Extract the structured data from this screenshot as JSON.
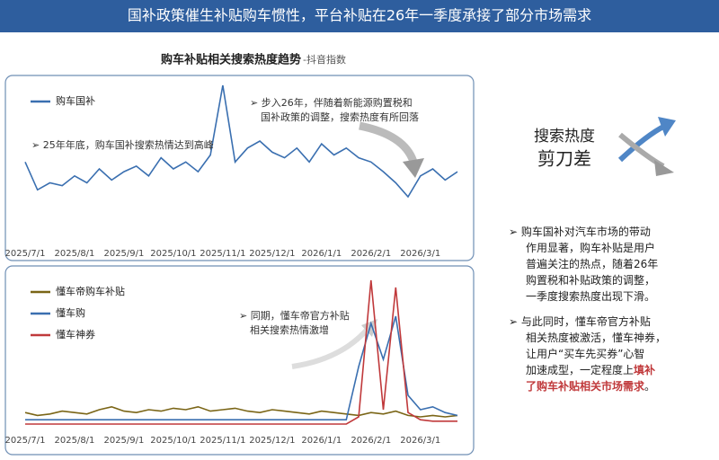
{
  "header": {
    "title": "国补政策催生补贴购车惯性，平台补贴在26年一季度承接了部分市场需求"
  },
  "chart_heading": {
    "title": "购车补贴相关搜索热度趋势",
    "source": "-抖音指数"
  },
  "chart_data": [
    {
      "type": "line",
      "categories": [
        "2025/7/1",
        null,
        null,
        null,
        "2025/8/1",
        null,
        null,
        null,
        "2025/9/1",
        null,
        null,
        null,
        "2025/10/1",
        null,
        null,
        null,
        "2025/11/1",
        null,
        null,
        null,
        "2025/12/1",
        null,
        null,
        null,
        "2026/1/1",
        null,
        null,
        null,
        "2026/2/1",
        null,
        null,
        null,
        "2026/3/1",
        null,
        null,
        null
      ],
      "series": [
        {
          "name": "购车国补",
          "color": "#3a6fb0",
          "values": [
            45,
            25,
            30,
            28,
            35,
            30,
            40,
            32,
            38,
            42,
            35,
            48,
            40,
            45,
            38,
            50,
            100,
            45,
            55,
            60,
            52,
            48,
            55,
            45,
            58,
            50,
            55,
            48,
            45,
            38,
            30,
            20,
            35,
            40,
            32,
            38
          ]
        }
      ],
      "annotations": [
        [
          "➢ 25年年底，购车国补搜索热情达到高峰"
        ],
        [
          "➢ 步入26年，伴随着新能源购置税和",
          "国补政策的调整，搜索热度有所回落"
        ]
      ]
    },
    {
      "type": "line",
      "categories": [
        "2025/7/1",
        null,
        null,
        null,
        "2025/8/1",
        null,
        null,
        null,
        "2025/9/1",
        null,
        null,
        null,
        "2025/10/1",
        null,
        null,
        null,
        "2025/11/1",
        null,
        null,
        null,
        "2025/12/1",
        null,
        null,
        null,
        "2026/1/1",
        null,
        null,
        null,
        "2026/2/1",
        null,
        null,
        null,
        "2026/3/1",
        null,
        null,
        null
      ],
      "series": [
        {
          "name": "懂车帝购车补贴",
          "color": "#7a6516",
          "values": [
            8,
            6,
            7,
            9,
            8,
            7,
            10,
            12,
            9,
            8,
            10,
            9,
            11,
            10,
            12,
            9,
            10,
            11,
            9,
            8,
            10,
            9,
            8,
            7,
            9,
            8,
            7,
            6,
            8,
            7,
            9,
            6,
            5,
            6,
            5,
            6
          ]
        },
        {
          "name": "懂车购",
          "color": "#3a6fb0",
          "values": [
            3,
            3,
            3,
            3,
            3,
            3,
            3,
            3,
            3,
            3,
            3,
            3,
            3,
            3,
            3,
            3,
            3,
            3,
            3,
            3,
            3,
            3,
            3,
            3,
            3,
            3,
            3,
            40,
            70,
            45,
            75,
            20,
            10,
            12,
            8,
            6
          ]
        },
        {
          "name": "懂车神券",
          "color": "#c0393b",
          "values": [
            0,
            0,
            0,
            0,
            0,
            0,
            0,
            0,
            0,
            0,
            0,
            0,
            0,
            0,
            0,
            0,
            0,
            0,
            0,
            0,
            0,
            0,
            0,
            0,
            0,
            0,
            0,
            5,
            100,
            10,
            95,
            8,
            3,
            2,
            2,
            2
          ]
        }
      ],
      "annotations": [
        [
          "➢ 同期，懂车帝官方补贴",
          "相关搜索热情激增"
        ]
      ]
    }
  ],
  "side": {
    "label_top": "搜索热度",
    "label_bottom": "剪刀差",
    "bullets": [
      [
        [
          {
            "text": "➢  购车国补对汽车市场的带动"
          }
        ],
        [
          {
            "text": "作用显著，购车补贴是用户"
          }
        ],
        [
          {
            "text": "普遍关注的热点，随着26年"
          }
        ],
        [
          {
            "text": "购置税和补贴政策的调整，"
          }
        ],
        [
          {
            "text": "一季度搜索热度出现下滑。"
          }
        ]
      ],
      [
        [
          {
            "text": "➢  与此同时，懂车帝官方补贴"
          }
        ],
        [
          {
            "text": "相关热度被激活，懂车神券，"
          }
        ],
        [
          {
            "text": "让用户“买车先买券”心智"
          }
        ],
        [
          {
            "text": "加速成型，一定程度上"
          },
          {
            "text": "填补",
            "highlight": true
          }
        ],
        [
          {
            "text": "了购车补贴相关市场需求",
            "highlight": true
          },
          {
            "text": "。"
          }
        ]
      ]
    ]
  }
}
